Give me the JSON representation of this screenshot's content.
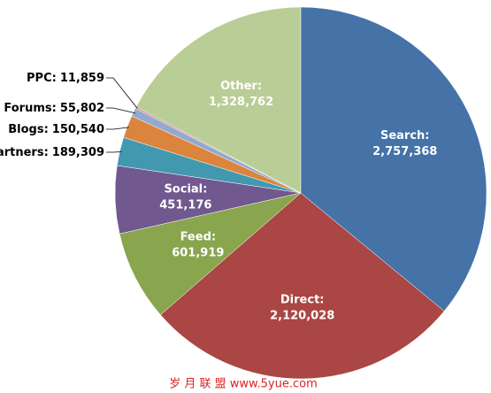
{
  "chart_data": {
    "type": "pie",
    "categories": [
      "Search:",
      "Direct:",
      "Feed:",
      "Social:",
      "Partners:",
      "Blogs:",
      "Forums:",
      "PPC:",
      "Other:"
    ],
    "values": [
      2757368,
      2120028,
      601919,
      451176,
      189309,
      150540,
      55802,
      11859,
      1328762
    ],
    "value_labels": [
      "2,757,368",
      "2,120,028",
      "601,919",
      "451,176",
      "189,309",
      "150,540",
      "55,802",
      "11,859",
      "1,328,762"
    ],
    "colors": [
      "#4572a7",
      "#aa4643",
      "#89a54e",
      "#71588f",
      "#4198af",
      "#db843d",
      "#93a9cf",
      "#d19392",
      "#b9cd96"
    ]
  },
  "watermark": "岁 月 联 盟  www.5yue.com"
}
